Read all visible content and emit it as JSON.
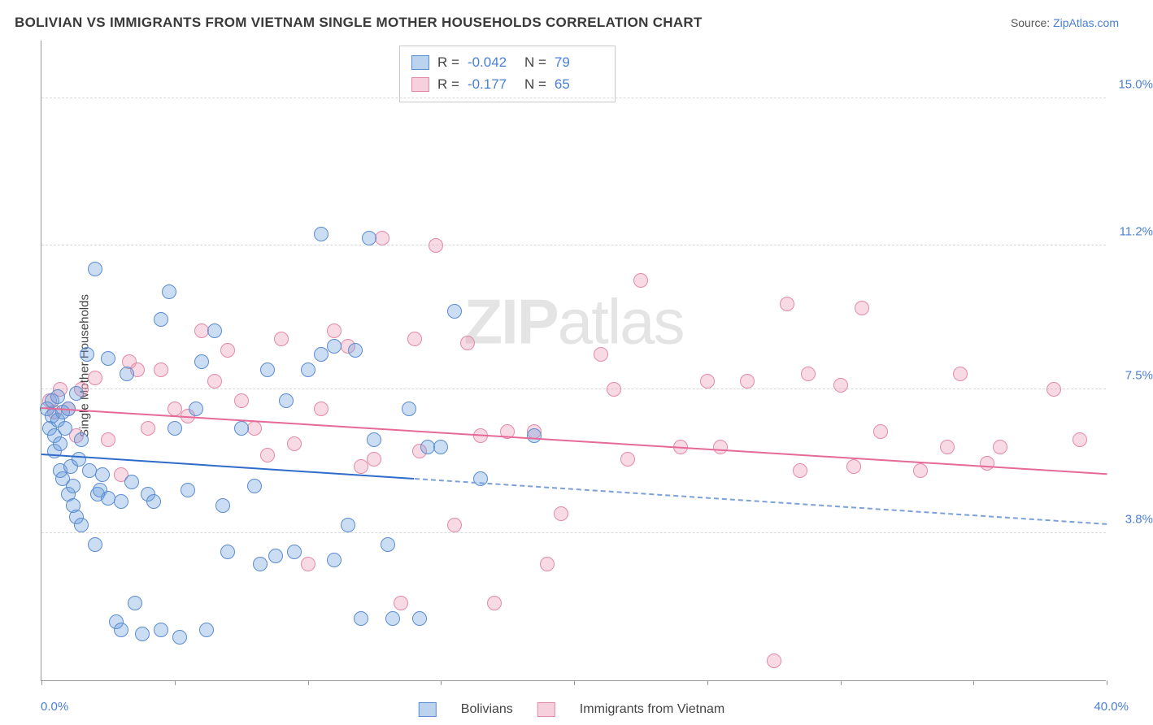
{
  "header": {
    "title": "BOLIVIAN VS IMMIGRANTS FROM VIETNAM SINGLE MOTHER HOUSEHOLDS CORRELATION CHART",
    "source_prefix": "Source: ",
    "source_link": "ZipAtlas.com"
  },
  "axes": {
    "ylabel": "Single Mother Households",
    "xlim": [
      0.0,
      40.0
    ],
    "ylim": [
      0.0,
      16.5
    ],
    "xlabel_min": "0.0%",
    "xlabel_max": "40.0%",
    "xticks": [
      0,
      5,
      10,
      15,
      20,
      25,
      30,
      35,
      40
    ],
    "y_gridlines": [
      {
        "value": 3.8,
        "label": "3.8%"
      },
      {
        "value": 7.5,
        "label": "7.5%"
      },
      {
        "value": 11.2,
        "label": "11.2%"
      },
      {
        "value": 15.0,
        "label": "15.0%"
      }
    ]
  },
  "stats": {
    "series_a": {
      "r_label": "R =",
      "r_value": "-0.042",
      "n_label": "N =",
      "n_value": "79"
    },
    "series_b": {
      "r_label": "R =",
      "r_value": "-0.177",
      "n_label": "N =",
      "n_value": "65"
    }
  },
  "legend": {
    "series_a": "Bolivians",
    "series_b": "Immigrants from Vietnam"
  },
  "watermark": {
    "zip": "ZIP",
    "atlas": "atlas"
  },
  "colors": {
    "blue_fill": "rgba(106,157,220,0.35)",
    "blue_stroke": "#5a8cd0",
    "blue_line": "#2f6bc9",
    "pink_fill": "rgba(236,150,178,0.35)",
    "pink_stroke": "#e389a9",
    "pink_line": "#e56a97",
    "label_blue": "#4a7fd6",
    "grid": "#d8d8d8",
    "axis": "#999999",
    "title_color": "#3a3a3a",
    "background": "#ffffff"
  },
  "chart": {
    "type": "scatter",
    "marker_radius": 9,
    "series": {
      "bolivians": {
        "color": "#5a8cd0",
        "regression": {
          "x0": 0,
          "y0": 5.8,
          "x1": 40,
          "y1": 4.0,
          "solid_until_x": 14
        },
        "points": [
          [
            0.2,
            7.0
          ],
          [
            0.3,
            6.5
          ],
          [
            0.4,
            6.8
          ],
          [
            0.4,
            7.2
          ],
          [
            0.5,
            6.3
          ],
          [
            0.5,
            5.9
          ],
          [
            0.6,
            6.7
          ],
          [
            0.6,
            7.3
          ],
          [
            0.7,
            5.4
          ],
          [
            0.7,
            6.1
          ],
          [
            0.8,
            6.9
          ],
          [
            0.8,
            5.2
          ],
          [
            0.9,
            6.5
          ],
          [
            1.0,
            7.0
          ],
          [
            1.0,
            4.8
          ],
          [
            1.1,
            5.5
          ],
          [
            1.2,
            5.0
          ],
          [
            1.2,
            4.5
          ],
          [
            1.3,
            4.2
          ],
          [
            1.3,
            7.4
          ],
          [
            1.4,
            5.7
          ],
          [
            1.5,
            6.2
          ],
          [
            1.5,
            4.0
          ],
          [
            1.7,
            8.4
          ],
          [
            1.8,
            5.4
          ],
          [
            2.0,
            10.6
          ],
          [
            2.0,
            3.5
          ],
          [
            2.1,
            4.8
          ],
          [
            2.2,
            4.9
          ],
          [
            2.3,
            5.3
          ],
          [
            2.5,
            8.3
          ],
          [
            2.5,
            4.7
          ],
          [
            2.8,
            1.5
          ],
          [
            3.0,
            4.6
          ],
          [
            3.0,
            1.3
          ],
          [
            3.2,
            7.9
          ],
          [
            3.4,
            5.1
          ],
          [
            3.5,
            2.0
          ],
          [
            3.8,
            1.2
          ],
          [
            4.0,
            4.8
          ],
          [
            4.2,
            4.6
          ],
          [
            4.5,
            9.3
          ],
          [
            4.5,
            1.3
          ],
          [
            4.8,
            10.0
          ],
          [
            5.0,
            6.5
          ],
          [
            5.2,
            1.1
          ],
          [
            5.5,
            4.9
          ],
          [
            5.8,
            7.0
          ],
          [
            6.0,
            8.2
          ],
          [
            6.2,
            1.3
          ],
          [
            6.5,
            9.0
          ],
          [
            6.8,
            4.5
          ],
          [
            7.0,
            3.3
          ],
          [
            7.5,
            6.5
          ],
          [
            8.0,
            5.0
          ],
          [
            8.2,
            3.0
          ],
          [
            8.5,
            8.0
          ],
          [
            8.8,
            3.2
          ],
          [
            9.2,
            7.2
          ],
          [
            9.5,
            3.3
          ],
          [
            10.0,
            8.0
          ],
          [
            10.5,
            11.5
          ],
          [
            10.5,
            8.4
          ],
          [
            11.0,
            3.1
          ],
          [
            11.0,
            8.6
          ],
          [
            11.5,
            4.0
          ],
          [
            11.8,
            8.5
          ],
          [
            12.0,
            1.6
          ],
          [
            12.3,
            11.4
          ],
          [
            12.5,
            6.2
          ],
          [
            13.0,
            3.5
          ],
          [
            13.2,
            1.6
          ],
          [
            13.8,
            7.0
          ],
          [
            14.2,
            1.6
          ],
          [
            14.5,
            6.0
          ],
          [
            15.0,
            6.0
          ],
          [
            15.5,
            9.5
          ],
          [
            16.5,
            5.2
          ],
          [
            18.5,
            6.3
          ]
        ]
      },
      "vietnam": {
        "color": "#e389a9",
        "regression": {
          "x0": 0,
          "y0": 7.0,
          "x1": 40,
          "y1": 5.3,
          "solid_until_x": 40
        },
        "points": [
          [
            0.3,
            7.2
          ],
          [
            0.5,
            6.9
          ],
          [
            0.7,
            7.5
          ],
          [
            1.0,
            7.0
          ],
          [
            1.3,
            6.3
          ],
          [
            1.5,
            7.5
          ],
          [
            2.0,
            7.8
          ],
          [
            2.5,
            6.2
          ],
          [
            3.0,
            5.3
          ],
          [
            3.3,
            8.2
          ],
          [
            3.6,
            8.0
          ],
          [
            4.0,
            6.5
          ],
          [
            4.5,
            8.0
          ],
          [
            5.0,
            7.0
          ],
          [
            5.5,
            6.8
          ],
          [
            6.0,
            9.0
          ],
          [
            6.5,
            7.7
          ],
          [
            7.0,
            8.5
          ],
          [
            7.5,
            7.2
          ],
          [
            8.0,
            6.5
          ],
          [
            8.5,
            5.8
          ],
          [
            9.0,
            8.8
          ],
          [
            9.5,
            6.1
          ],
          [
            10.0,
            3.0
          ],
          [
            10.5,
            7.0
          ],
          [
            11.0,
            9.0
          ],
          [
            11.5,
            8.6
          ],
          [
            12.0,
            5.5
          ],
          [
            12.5,
            5.7
          ],
          [
            12.8,
            11.4
          ],
          [
            13.5,
            2.0
          ],
          [
            14.0,
            8.8
          ],
          [
            14.2,
            5.9
          ],
          [
            14.8,
            11.2
          ],
          [
            15.5,
            4.0
          ],
          [
            16.0,
            8.7
          ],
          [
            16.5,
            6.3
          ],
          [
            17.0,
            2.0
          ],
          [
            17.5,
            6.4
          ],
          [
            18.5,
            6.4
          ],
          [
            19.0,
            3.0
          ],
          [
            19.5,
            4.3
          ],
          [
            21.0,
            8.4
          ],
          [
            21.5,
            7.5
          ],
          [
            22.0,
            5.7
          ],
          [
            22.5,
            10.3
          ],
          [
            24.0,
            6.0
          ],
          [
            25.0,
            7.7
          ],
          [
            25.5,
            6.0
          ],
          [
            26.5,
            7.7
          ],
          [
            27.5,
            0.5
          ],
          [
            28.0,
            9.7
          ],
          [
            28.5,
            5.4
          ],
          [
            28.8,
            7.9
          ],
          [
            30.0,
            7.6
          ],
          [
            30.5,
            5.5
          ],
          [
            30.8,
            9.6
          ],
          [
            31.5,
            6.4
          ],
          [
            33.0,
            5.4
          ],
          [
            34.0,
            6.0
          ],
          [
            34.5,
            7.9
          ],
          [
            35.5,
            5.6
          ],
          [
            36.0,
            6.0
          ],
          [
            38.0,
            7.5
          ],
          [
            39.0,
            6.2
          ]
        ]
      }
    }
  }
}
